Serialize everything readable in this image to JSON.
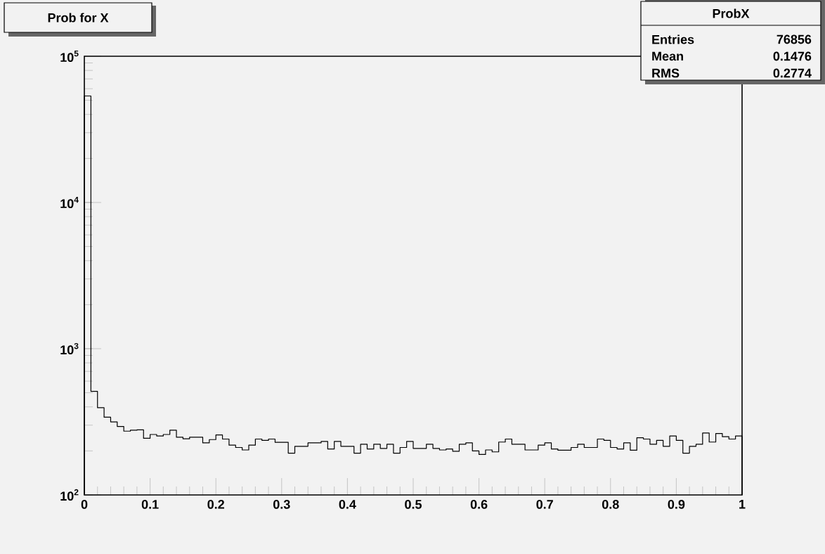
{
  "chart_data": {
    "type": "histogram",
    "title": "Prob for X",
    "bins": [
      0,
      0.01,
      0.02,
      0.03,
      0.04,
      0.05,
      0.06,
      0.07,
      0.08,
      0.09,
      0.1,
      0.11,
      0.12,
      0.13,
      0.14,
      0.15,
      0.16,
      0.17,
      0.18,
      0.19,
      0.2,
      0.21,
      0.22,
      0.23,
      0.24,
      0.25,
      0.26,
      0.27,
      0.28,
      0.29,
      0.3,
      0.31,
      0.32,
      0.33,
      0.34,
      0.35,
      0.36,
      0.37,
      0.38,
      0.39,
      0.4,
      0.41,
      0.42,
      0.43,
      0.44,
      0.45,
      0.46,
      0.47,
      0.48,
      0.49,
      0.5,
      0.51,
      0.52,
      0.53,
      0.54,
      0.55,
      0.56,
      0.57,
      0.58,
      0.59,
      0.6,
      0.61,
      0.62,
      0.63,
      0.64,
      0.65,
      0.66,
      0.67,
      0.68,
      0.69,
      0.7,
      0.71,
      0.72,
      0.73,
      0.74,
      0.75,
      0.76,
      0.77,
      0.78,
      0.79,
      0.8,
      0.81,
      0.82,
      0.83,
      0.84,
      0.85,
      0.86,
      0.87,
      0.88,
      0.89,
      0.9,
      0.91,
      0.92,
      0.93,
      0.94,
      0.95,
      0.96,
      0.97,
      0.98,
      0.99,
      1
    ],
    "values": [
      53500,
      511,
      395,
      340,
      316,
      294,
      273,
      277,
      279,
      244,
      259,
      253,
      259,
      277,
      248,
      242,
      248,
      248,
      227,
      239,
      257,
      241,
      219,
      211,
      203,
      219,
      241,
      236,
      241,
      229,
      229,
      193,
      215,
      215,
      227,
      227,
      232,
      206,
      232,
      215,
      215,
      193,
      222,
      206,
      222,
      208,
      222,
      193,
      211,
      232,
      208,
      208,
      222,
      208,
      203,
      206,
      199,
      222,
      227,
      200,
      189,
      203,
      197,
      230,
      241,
      222,
      222,
      203,
      203,
      219,
      227,
      206,
      202,
      202,
      211,
      222,
      211,
      211,
      241,
      236,
      211,
      206,
      227,
      202,
      246,
      241,
      222,
      236,
      215,
      253,
      236,
      193,
      215,
      222,
      265,
      230,
      263,
      250,
      241,
      253
    ],
    "color": "#000000",
    "xlim": [
      0,
      1
    ],
    "ylim": [
      100,
      100000
    ],
    "log": "y",
    "xticks": [
      0,
      0.1,
      0.2,
      0.3,
      0.4,
      0.5,
      0.6,
      0.7,
      0.8,
      0.9,
      1
    ],
    "yticks": [
      {
        "value": 100,
        "label": "10$^{2}$"
      },
      {
        "value": 1000,
        "label": "10$^{3}$"
      },
      {
        "value": 10000,
        "label": "10$^{4}$"
      },
      {
        "value": 100000,
        "label": "10$^{5}$"
      }
    ],
    "annotations": [
      "ProbX",
      "Entries",
      "76856",
      "Mean",
      "0.1476",
      "RMS",
      "0.2774"
    ]
  }
}
